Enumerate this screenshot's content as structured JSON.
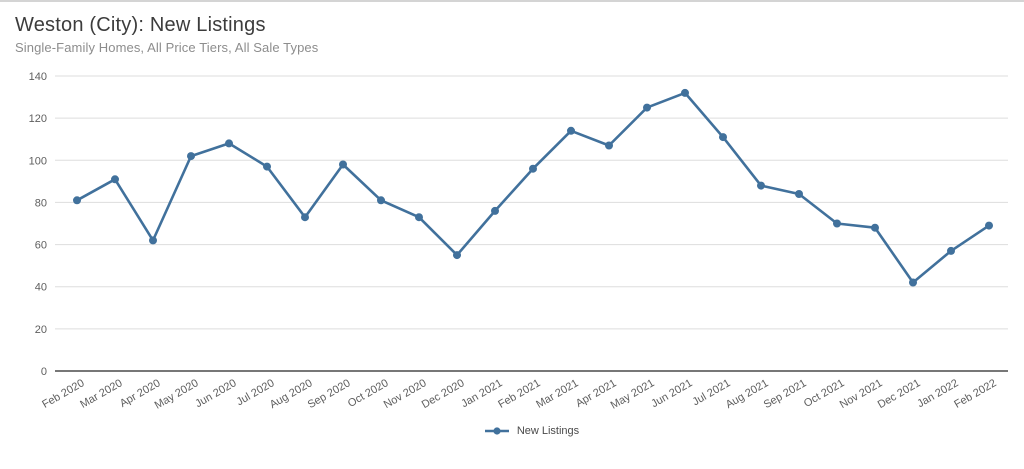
{
  "chart_data": {
    "type": "line",
    "title": "Weston (City): New Listings",
    "subtitle": "Single-Family Homes, All Price Tiers, All Sale Types",
    "categories": [
      "Feb 2020",
      "Mar 2020",
      "Apr 2020",
      "May 2020",
      "Jun 2020",
      "Jul 2020",
      "Aug 2020",
      "Sep 2020",
      "Oct 2020",
      "Nov 2020",
      "Dec 2020",
      "Jan 2021",
      "Feb 2021",
      "Mar 2021",
      "Apr 2021",
      "May 2021",
      "Jun 2021",
      "Jul 2021",
      "Aug 2021",
      "Sep 2021",
      "Oct 2021",
      "Nov 2021",
      "Dec 2021",
      "Jan 2022",
      "Feb 2022"
    ],
    "series": [
      {
        "name": "New Listings",
        "values": [
          81,
          91,
          62,
          102,
          108,
          97,
          73,
          98,
          81,
          73,
          55,
          76,
          96,
          114,
          107,
          125,
          132,
          111,
          88,
          84,
          70,
          68,
          42,
          57,
          69
        ]
      }
    ],
    "xlabel": "",
    "ylabel": "",
    "ylim": [
      0,
      140
    ],
    "yticks": [
      0,
      20,
      40,
      60,
      80,
      100,
      120,
      140
    ],
    "grid": "horizontal",
    "legend_position": "bottom",
    "colors": {
      "line": "#41719C",
      "grid": "#DDDDDD",
      "axis": "#4A4A4A",
      "tick_text": "#5E5E5E",
      "title_text": "#3C3C3C",
      "subtitle_text": "#8D8D8D"
    }
  }
}
